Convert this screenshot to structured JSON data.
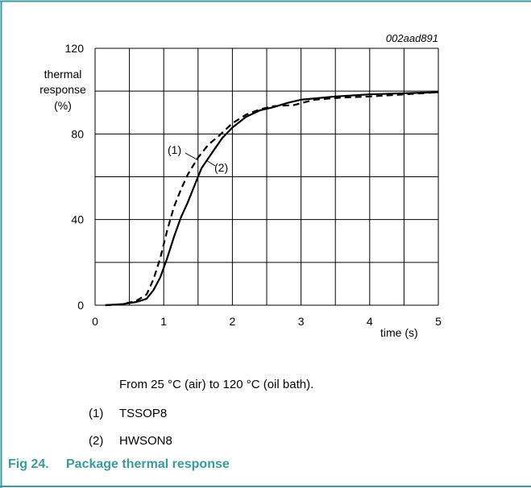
{
  "chart_data": {
    "type": "line",
    "id": "002aad891",
    "ylabel": [
      "thermal",
      "response",
      "(%)"
    ],
    "xlabel": "time (s)",
    "xlim": [
      0,
      5
    ],
    "xticks": [
      0,
      1,
      2,
      3,
      4,
      5
    ],
    "xgrid": [
      0.5,
      1.5,
      2.5,
      3.5,
      4.5
    ],
    "ylim": [
      0,
      120
    ],
    "yticks": [
      0,
      40,
      80,
      120
    ],
    "ygrid": [
      20,
      60,
      100
    ],
    "grid": true,
    "series": [
      {
        "name": "TSSOP8",
        "label": "(1)",
        "color": "#000000",
        "dash": true,
        "x": [
          0.15,
          0.4,
          0.6,
          0.75,
          0.85,
          0.95,
          1.05,
          1.15,
          1.25,
          1.35,
          1.5,
          1.65,
          1.8,
          2,
          2.2,
          2.4,
          2.6,
          2.9,
          3.2,
          3.6,
          4,
          4.5,
          5
        ],
        "values": [
          0,
          0.5,
          2,
          5,
          12,
          22,
          35,
          46,
          54,
          61,
          69,
          75,
          79,
          85,
          89,
          91.5,
          93,
          93.5,
          96,
          97,
          97.5,
          98.5,
          99.5
        ]
      },
      {
        "name": "HWSON8",
        "label": "(2)",
        "color": "#000000",
        "dash": false,
        "x": [
          0.15,
          0.4,
          0.6,
          0.75,
          0.85,
          0.95,
          1.05,
          1.15,
          1.25,
          1.35,
          1.45,
          1.55,
          1.7,
          1.85,
          2,
          2.2,
          2.4,
          2.6,
          2.8,
          3,
          3.5,
          4,
          4.5,
          5
        ],
        "values": [
          0,
          0.5,
          1.5,
          3,
          7,
          13,
          22,
          32,
          41,
          48,
          56,
          64,
          71,
          78,
          83,
          88,
          91,
          92.5,
          94.5,
          96,
          97.5,
          98.5,
          99,
          99.5
        ]
      }
    ],
    "note": "From 25 °C (air) to 120 °C (oil bath).",
    "caption": {
      "number": "Fig 24.",
      "text": "Package thermal response"
    }
  }
}
